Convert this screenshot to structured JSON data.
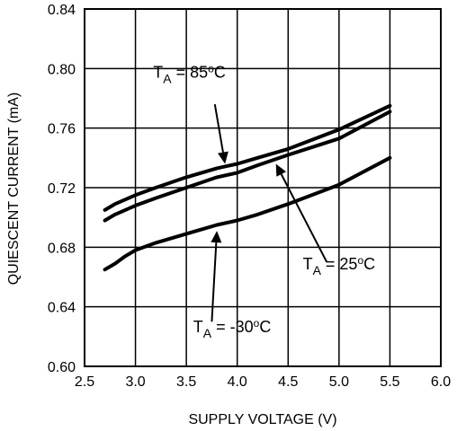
{
  "chart_data": {
    "type": "line",
    "xlabel": "SUPPLY VOLTAGE (V)",
    "ylabel": "QUIESCENT CURRENT (mA)",
    "xlim": [
      2.5,
      6.0
    ],
    "ylim": [
      0.6,
      0.84
    ],
    "xticks": [
      "2.5",
      "3.0",
      "3.5",
      "4.0",
      "4.5",
      "5.0",
      "5.5",
      "6.0"
    ],
    "yticks": [
      "0.60",
      "0.64",
      "0.68",
      "0.72",
      "0.76",
      "0.80",
      "0.84"
    ],
    "grid": true,
    "series": [
      {
        "name": "T_A = 85°C",
        "label_parts": [
          "T",
          "A",
          " = 85",
          "o",
          "C"
        ],
        "x": [
          2.7,
          2.8,
          3.0,
          3.2,
          3.5,
          3.8,
          4.0,
          4.2,
          4.5,
          5.0,
          5.5
        ],
        "y": [
          0.705,
          0.709,
          0.715,
          0.72,
          0.727,
          0.733,
          0.736,
          0.74,
          0.746,
          0.759,
          0.775
        ]
      },
      {
        "name": "T_A = 25°C",
        "label_parts": [
          "T",
          "A",
          " = 25",
          "o",
          "C"
        ],
        "x": [
          2.7,
          2.8,
          3.0,
          3.2,
          3.5,
          3.8,
          4.0,
          4.2,
          4.5,
          5.0,
          5.5
        ],
        "y": [
          0.698,
          0.702,
          0.708,
          0.713,
          0.72,
          0.727,
          0.73,
          0.735,
          0.742,
          0.753,
          0.771
        ]
      },
      {
        "name": "T_A = -30°C",
        "label_parts": [
          "T",
          "A",
          " = -30",
          "o",
          "C"
        ],
        "x": [
          2.7,
          2.8,
          2.9,
          3.0,
          3.2,
          3.5,
          3.8,
          4.0,
          4.2,
          4.5,
          5.0,
          5.5
        ],
        "y": [
          0.665,
          0.669,
          0.674,
          0.678,
          0.683,
          0.689,
          0.695,
          0.698,
          0.702,
          0.709,
          0.722,
          0.74
        ]
      }
    ],
    "annotations": [
      {
        "series": 0,
        "label_x": 3.53,
        "label_y": 0.794,
        "arrow_from": [
          3.78,
          0.776
        ],
        "arrow_to": [
          3.88,
          0.736
        ]
      },
      {
        "series": 1,
        "label_x": 5.0,
        "label_y": 0.665,
        "arrow_from": [
          4.88,
          0.67
        ],
        "arrow_to": [
          4.38,
          0.736
        ]
      },
      {
        "series": 2,
        "label_x": 3.95,
        "label_y": 0.623,
        "arrow_from": [
          3.75,
          0.63
        ],
        "arrow_to": [
          3.8,
          0.691
        ]
      }
    ]
  }
}
